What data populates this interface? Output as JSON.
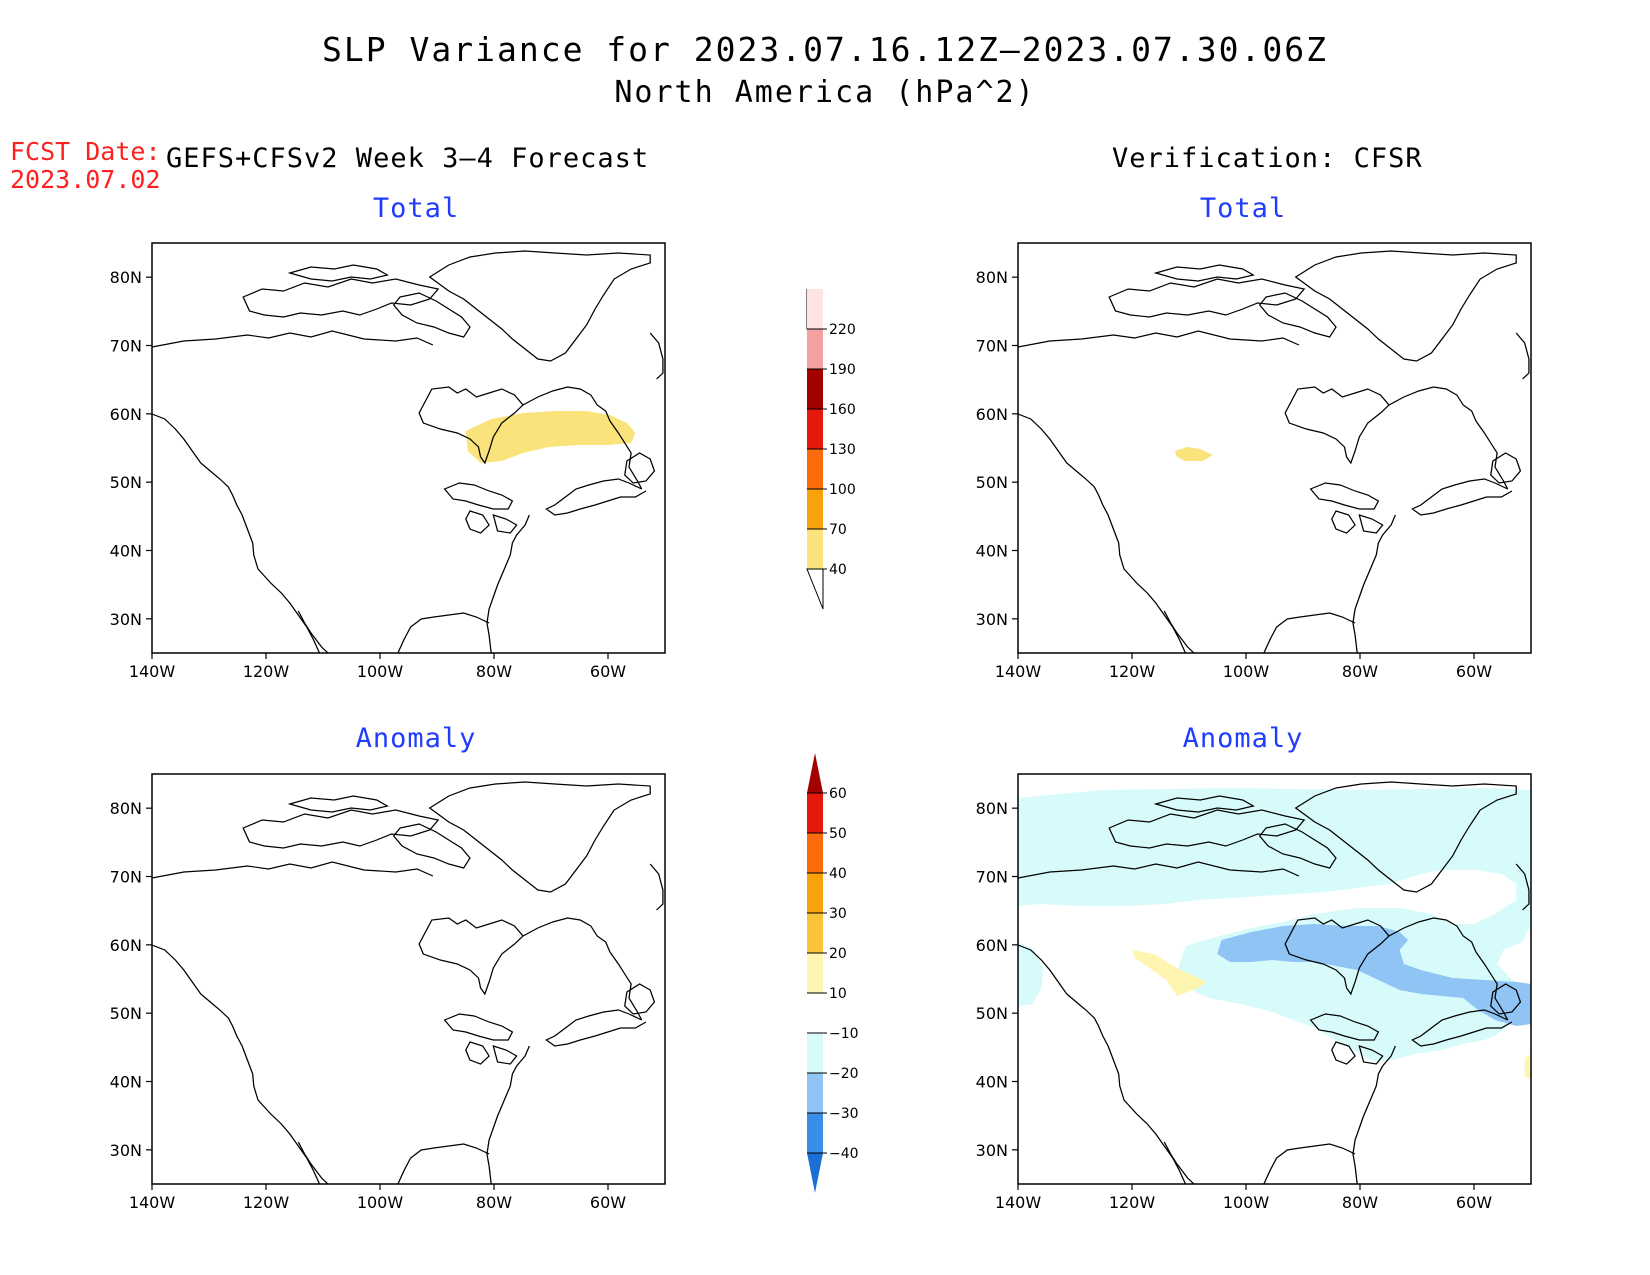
{
  "title": {
    "line1": "SLP Variance for 2023.07.16.12Z–2023.07.30.06Z",
    "line2": "North America (hPa^2)"
  },
  "fcst": {
    "label": "FCST Date:",
    "date": "2023.07.02"
  },
  "columns": {
    "forecast": "GEFS+CFSv2 Week 3–4 Forecast",
    "verification": "Verification: CFSR"
  },
  "panels": [
    {
      "id": "forecast-total",
      "title": "Total"
    },
    {
      "id": "verification-total",
      "title": "Total"
    },
    {
      "id": "forecast-anomaly",
      "title": "Anomaly"
    },
    {
      "id": "verification-anomaly",
      "title": "Anomaly"
    }
  ],
  "axes": {
    "lat_labels": [
      "30N",
      "40N",
      "50N",
      "60N",
      "70N",
      "80N"
    ],
    "lat_values": [
      30,
      40,
      50,
      60,
      70,
      80
    ],
    "lon_labels": [
      "140W",
      "120W",
      "100W",
      "80W",
      "60W"
    ],
    "lon_values": [
      -140,
      -120,
      -100,
      -80,
      -60
    ],
    "lon_range": [
      -140,
      -50
    ],
    "lat_range": [
      25,
      85
    ]
  },
  "colorbars": {
    "total": {
      "labels": [
        "40",
        "70",
        "100",
        "130",
        "160",
        "190",
        "220"
      ],
      "colors": [
        "#fbe37b",
        "#fba10b",
        "#fb6a0b",
        "#e31a0b",
        "#a30000",
        "#f3a0a0",
        "#fde3e3"
      ]
    },
    "anomaly": {
      "labels": [
        "−40",
        "−30",
        "−20",
        "−10",
        "10",
        "20",
        "30",
        "40",
        "50",
        "60"
      ],
      "colors": [
        "#1c6fd6",
        "#3a8ee8",
        "#8fc4f5",
        "#d7fbfb",
        "#ffffff",
        "#fdf5b0",
        "#fbc23c",
        "#fba10b",
        "#fb6a0b",
        "#e31a0b",
        "#a30000"
      ]
    }
  },
  "colors": {
    "title_blue": "#1f3cff",
    "fcst_red": "#ff2020",
    "shade_yellow": "#fbe37b",
    "shade_light_cyan": "#d7fbfb",
    "shade_light_blue": "#8fc4f5",
    "shade_pale_yellow": "#fdf5b0"
  }
}
